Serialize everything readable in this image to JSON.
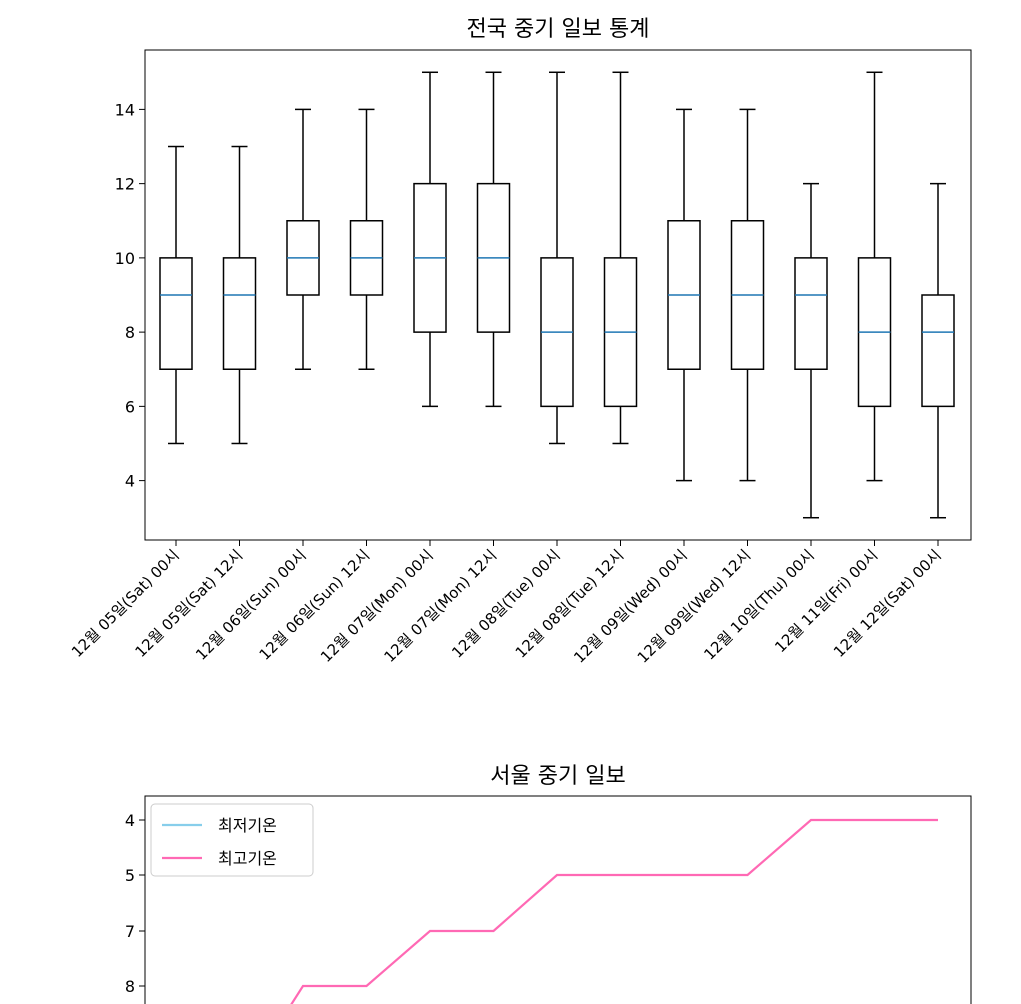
{
  "chart_data": [
    {
      "type": "box",
      "title": "전국 중기 일보 통계",
      "xlabel": "",
      "ylabel": "",
      "ylim": [
        2.4,
        15.6
      ],
      "yticks": [
        4,
        6,
        8,
        10,
        12,
        14
      ],
      "categories": [
        "12월 05일(Sat) 00시",
        "12월 05일(Sat) 12시",
        "12월 06일(Sun) 00시",
        "12월 06일(Sun) 12시",
        "12월 07일(Mon) 00시",
        "12월 07일(Mon) 12시",
        "12월 08일(Tue) 00시",
        "12월 08일(Tue) 12시",
        "12월 09일(Wed) 00시",
        "12월 09일(Wed) 12시",
        "12월 10일(Thu) 00시",
        "12월 11일(Fri) 00시",
        "12월 12일(Sat) 00시"
      ],
      "boxes": [
        {
          "min": 5,
          "q1": 7,
          "median": 9,
          "q3": 10,
          "max": 13
        },
        {
          "min": 5,
          "q1": 7,
          "median": 9,
          "q3": 10,
          "max": 13
        },
        {
          "min": 7,
          "q1": 9,
          "median": 10,
          "q3": 11,
          "max": 14
        },
        {
          "min": 7,
          "q1": 9,
          "median": 10,
          "q3": 11,
          "max": 14
        },
        {
          "min": 6,
          "q1": 8,
          "median": 10,
          "q3": 12,
          "max": 15
        },
        {
          "min": 6,
          "q1": 8,
          "median": 10,
          "q3": 12,
          "max": 15
        },
        {
          "min": 5,
          "q1": 6,
          "median": 8,
          "q3": 10,
          "max": 15
        },
        {
          "min": 5,
          "q1": 6,
          "median": 8,
          "q3": 10,
          "max": 15
        },
        {
          "min": 4,
          "q1": 7,
          "median": 9,
          "q3": 11,
          "max": 14
        },
        {
          "min": 4,
          "q1": 7,
          "median": 9,
          "q3": 11,
          "max": 14
        },
        {
          "min": 3,
          "q1": 7,
          "median": 9,
          "q3": 10,
          "max": 12
        },
        {
          "min": 4,
          "q1": 6,
          "median": 8,
          "q3": 10,
          "max": 15
        },
        {
          "min": 3,
          "q1": 6,
          "median": 8,
          "q3": 9,
          "max": 12
        }
      ],
      "box_color": "#000000",
      "median_color": "#1f77b4",
      "grid": false
    },
    {
      "type": "line",
      "title": "서울 중기 일보",
      "xlabel": "",
      "ylabel": "",
      "y_inverted": true,
      "y_categorical": true,
      "yticks": [
        "4",
        "5",
        "7",
        "8"
      ],
      "legend_position": "top-left",
      "series": [
        {
          "name": "최저기온",
          "color": "#87ceeb",
          "values": []
        },
        {
          "name": "최고기온",
          "color": "#ff69b4",
          "values": [
            "",
            "",
            "8",
            "8",
            "7",
            "7",
            "5",
            "5",
            "5",
            "5",
            "4",
            "4",
            "4"
          ]
        }
      ],
      "grid": false
    }
  ]
}
